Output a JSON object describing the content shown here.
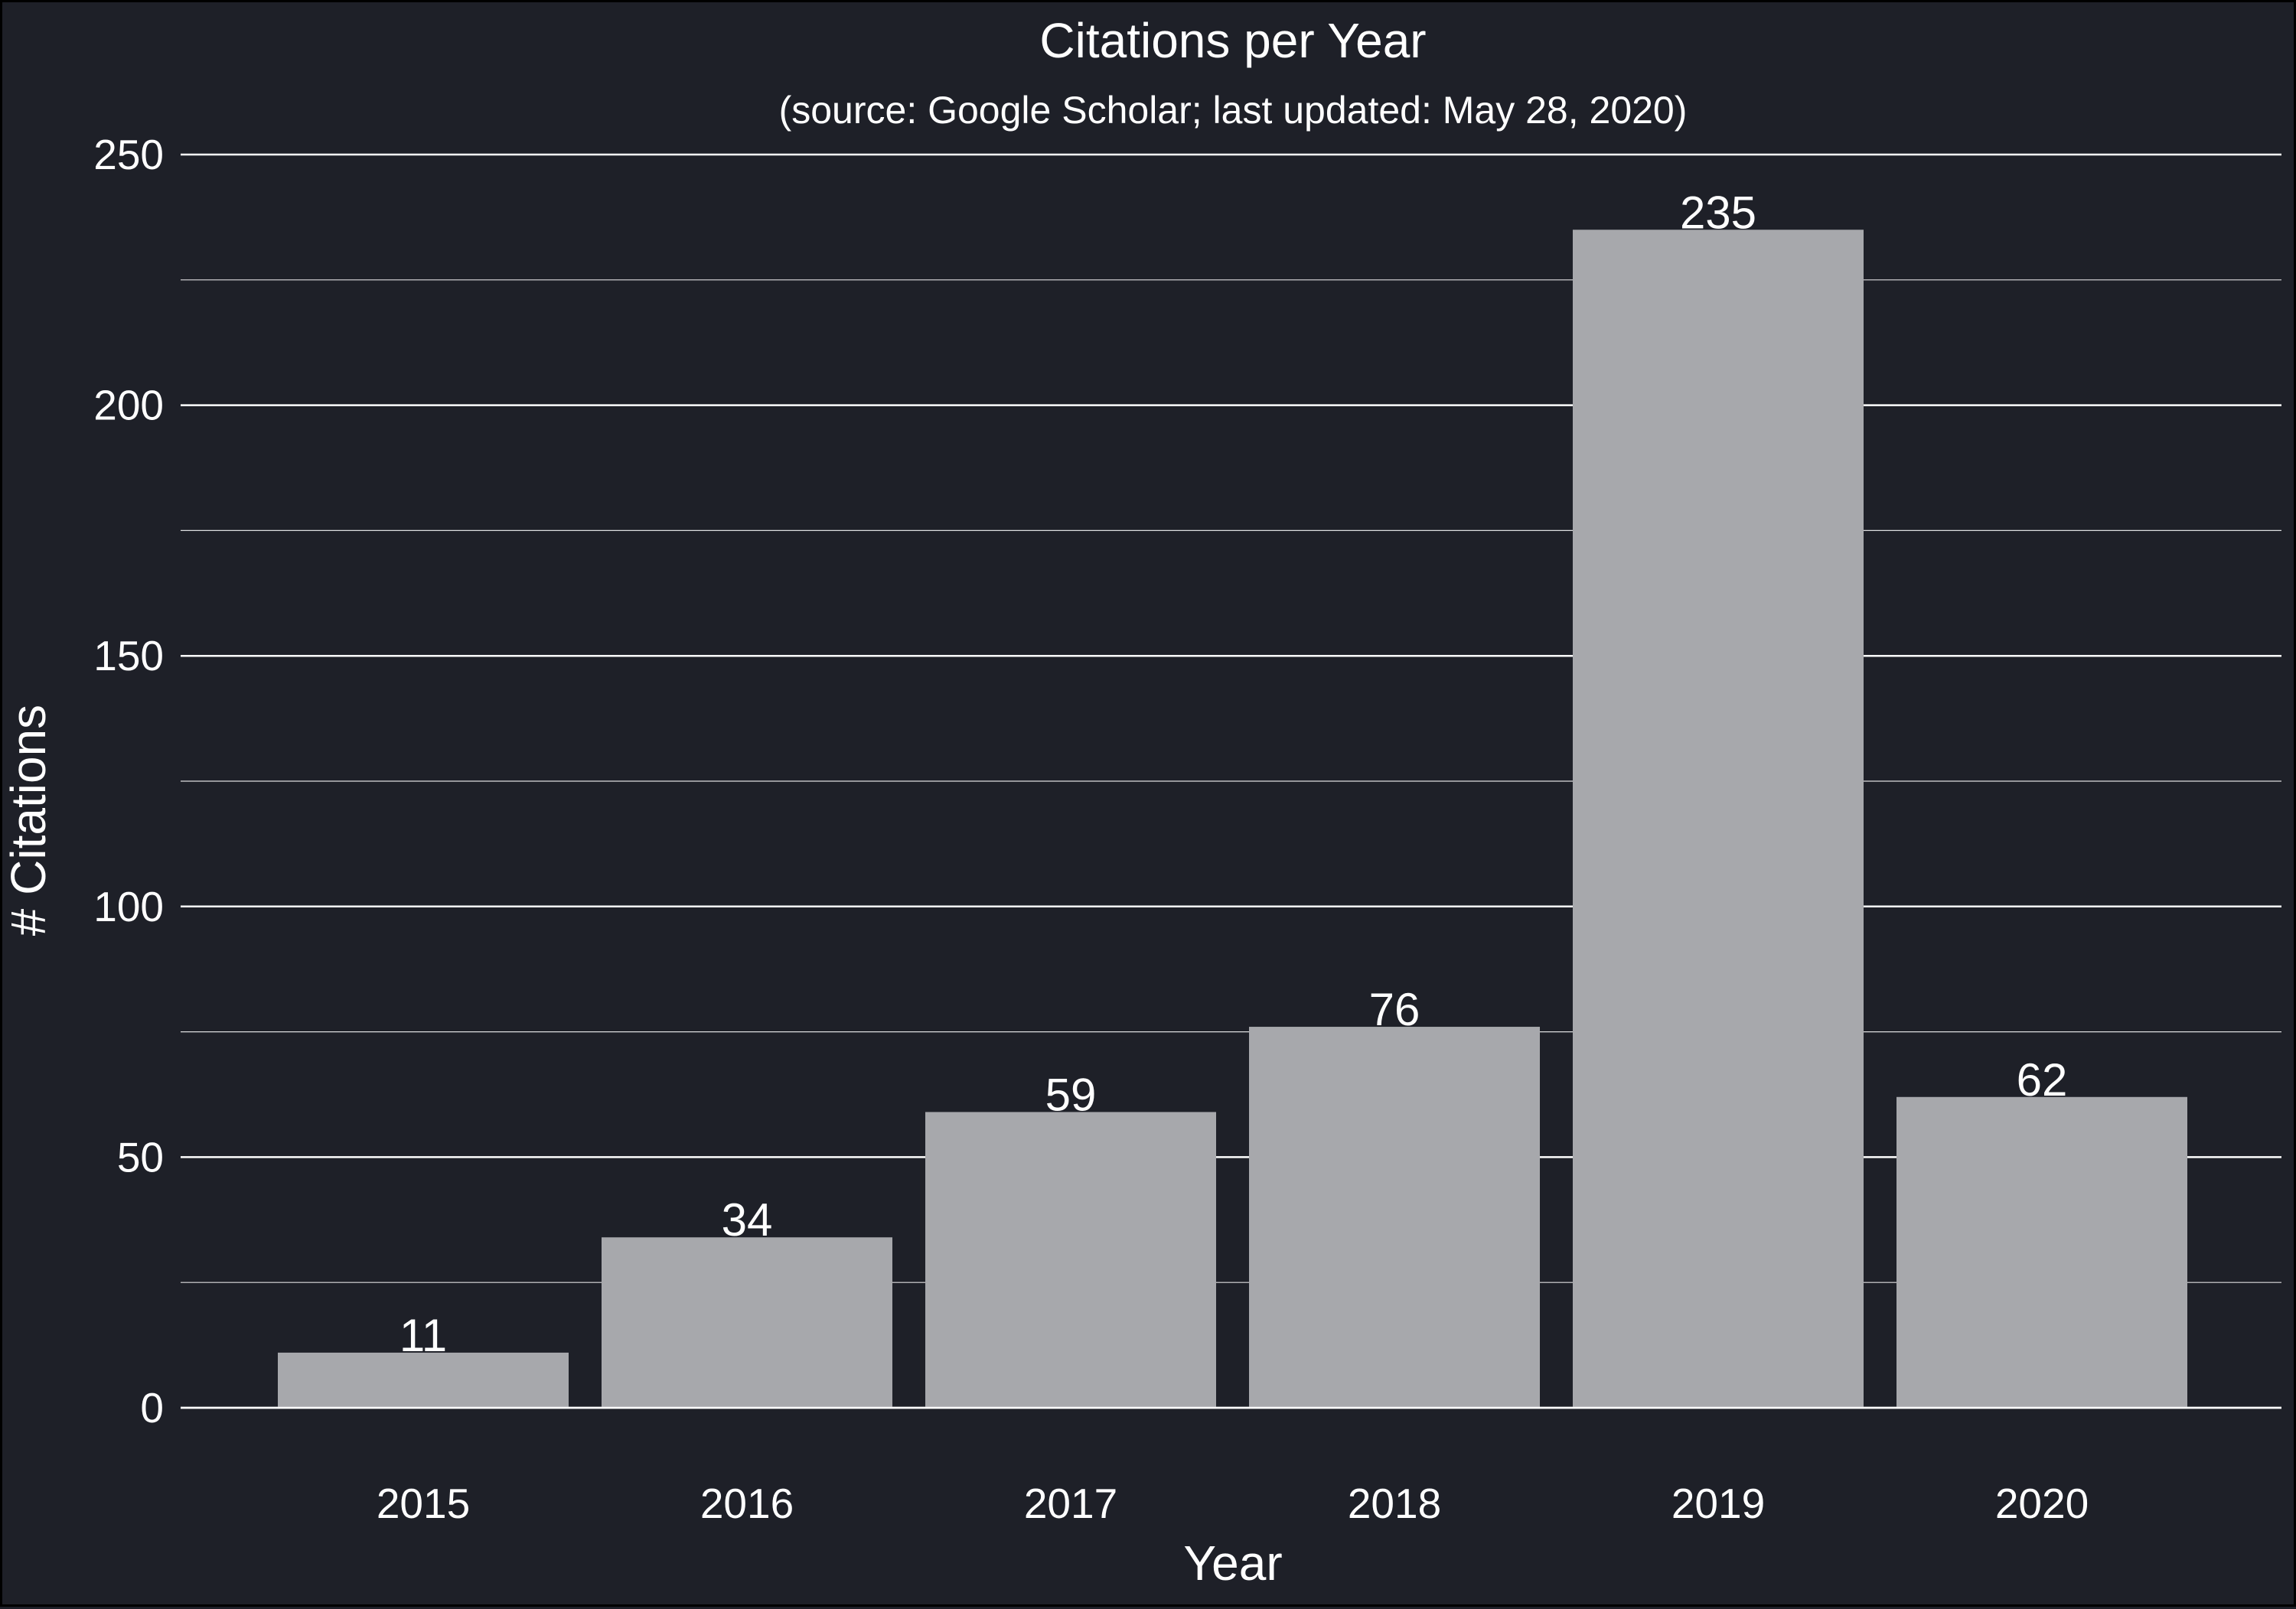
{
  "chart_data": {
    "type": "bar",
    "title": "Citations per Year",
    "subtitle": "(source: Google Scholar; last updated: May 28, 2020)",
    "xlabel": "Year",
    "ylabel": "# Citations",
    "categories": [
      "2015",
      "2016",
      "2017",
      "2018",
      "2019",
      "2020"
    ],
    "values": [
      11,
      34,
      59,
      76,
      235,
      62
    ],
    "data_labels": [
      "11",
      "34",
      "59",
      "76",
      "235",
      "62"
    ],
    "ylim": [
      0,
      250
    ],
    "yticks": [
      0,
      50,
      100,
      150,
      200,
      250
    ],
    "ytick_labels": [
      "0",
      "50",
      "100",
      "150",
      "200",
      "250"
    ],
    "minor_yticks": [
      25,
      75,
      125,
      175,
      225
    ],
    "grid": true,
    "legend": "none"
  },
  "colors": {
    "background": "#1e2028",
    "bar": "#a7a8ac",
    "text": "#ffffff",
    "grid": "#ffffff"
  }
}
